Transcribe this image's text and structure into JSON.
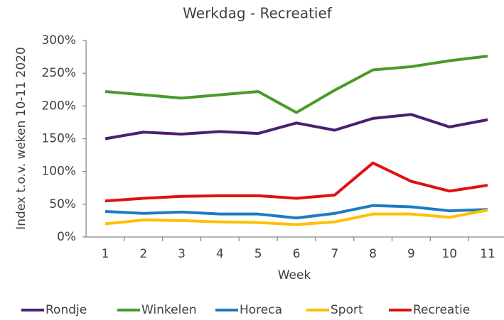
{
  "chart_data": {
    "type": "line",
    "title": "Werkdag - Recreatief",
    "x_label": "Week",
    "y_label": "Index t.o.v. weken 10-11 2020",
    "categories": [
      "1",
      "2",
      "3",
      "4",
      "5",
      "6",
      "7",
      "8",
      "9",
      "10",
      "11"
    ],
    "ylim": [
      0,
      300
    ],
    "yticks": [
      {
        "value": 0,
        "label": "0%"
      },
      {
        "value": 50,
        "label": "50%"
      },
      {
        "value": 100,
        "label": "100%"
      },
      {
        "value": 150,
        "label": "150%"
      },
      {
        "value": 200,
        "label": "200%"
      },
      {
        "value": 250,
        "label": "250%"
      },
      {
        "value": 300,
        "label": "300%"
      }
    ],
    "grid": false,
    "legend": "bottom",
    "series": [
      {
        "name": "Rondje",
        "color": "#4b1f6f",
        "values": [
          150,
          160,
          157,
          161,
          158,
          174,
          163,
          181,
          187,
          168,
          179
        ]
      },
      {
        "name": "Winkelen",
        "color": "#4a9a2a",
        "values": [
          222,
          217,
          212,
          217,
          222,
          190,
          224,
          255,
          260,
          269,
          276
        ]
      },
      {
        "name": "Horeca",
        "color": "#1f7bbf",
        "values": [
          39,
          36,
          38,
          35,
          35,
          29,
          36,
          48,
          46,
          40,
          42
        ]
      },
      {
        "name": "Sport",
        "color": "#ffc000",
        "values": [
          20,
          26,
          25,
          23,
          22,
          19,
          23,
          35,
          35,
          30,
          41
        ]
      },
      {
        "name": "Recreatie",
        "color": "#e01010",
        "values": [
          55,
          59,
          62,
          63,
          63,
          59,
          64,
          113,
          85,
          70,
          79
        ]
      }
    ]
  }
}
